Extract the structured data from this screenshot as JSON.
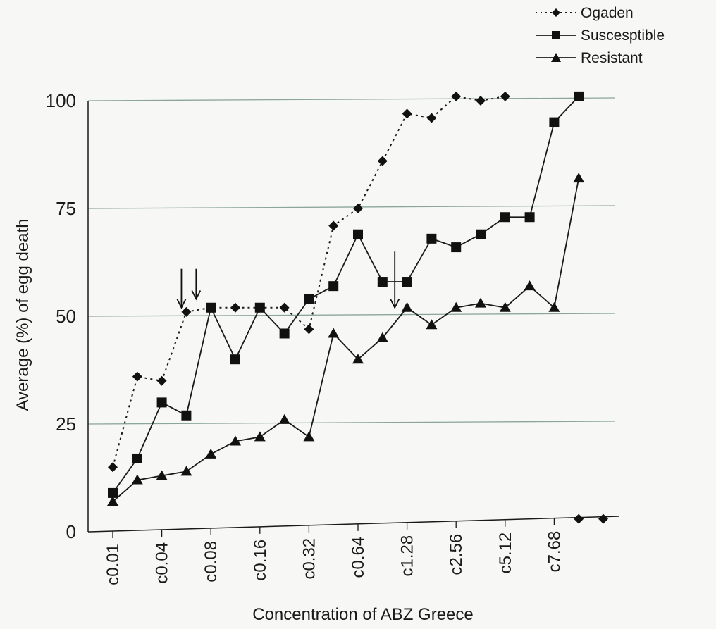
{
  "chart_data": {
    "type": "line",
    "title": "",
    "xlabel": "Concentration of ABZ Greece",
    "ylabel": "Average (%) of egg death",
    "ylim": [
      0,
      100
    ],
    "yticks": [
      0,
      25,
      50,
      75,
      100
    ],
    "grid": true,
    "legend_position": "top-right",
    "x_tick_labels": [
      {
        "index": 0,
        "label": "c0.01"
      },
      {
        "index": 2,
        "label": "c0.04"
      },
      {
        "index": 4,
        "label": "c0.08"
      },
      {
        "index": 6,
        "label": "c0.16"
      },
      {
        "index": 8,
        "label": "c0.32"
      },
      {
        "index": 10,
        "label": "c0.64"
      },
      {
        "index": 12,
        "label": "c1.28"
      },
      {
        "index": 14,
        "label": "c2.56"
      },
      {
        "index": 16,
        "label": "c5.12"
      },
      {
        "index": 18,
        "label": "c7.68"
      }
    ],
    "series": [
      {
        "name": "Ogaden",
        "style": "dotted",
        "marker": "diamond",
        "values": [
          15,
          36,
          35,
          51,
          52,
          52,
          52,
          52,
          47,
          71,
          75,
          86,
          97,
          96,
          101,
          100,
          101,
          null,
          null,
          null,
          null
        ],
        "detached_points": [
          {
            "index": 19,
            "value": 3
          },
          {
            "index": 20,
            "value": 3
          }
        ]
      },
      {
        "name": "Suscesptible",
        "style": "solid",
        "marker": "square",
        "values": [
          9,
          17,
          30,
          27,
          52,
          40,
          52,
          46,
          54,
          57,
          69,
          58,
          58,
          68,
          66,
          69,
          73,
          73,
          95,
          101
        ]
      },
      {
        "name": "Resistant",
        "style": "solid",
        "marker": "triangle",
        "values": [
          7,
          12,
          13,
          14,
          18,
          21,
          22,
          26,
          22,
          46,
          40,
          45,
          52,
          48,
          52,
          53,
          52,
          57,
          52,
          82
        ]
      }
    ],
    "annotations": [
      {
        "type": "arrow-down",
        "at_index": 2.8,
        "from_value": 61,
        "to_value": 52
      },
      {
        "type": "arrow-down",
        "at_index": 3.4,
        "from_value": 61,
        "to_value": 54
      },
      {
        "type": "arrow-down",
        "at_index": 11.5,
        "from_value": 65,
        "to_value": 52
      }
    ],
    "colors": {
      "line": "#1a1a1a",
      "grid": "#8aa59a",
      "marker": "#111111"
    }
  }
}
